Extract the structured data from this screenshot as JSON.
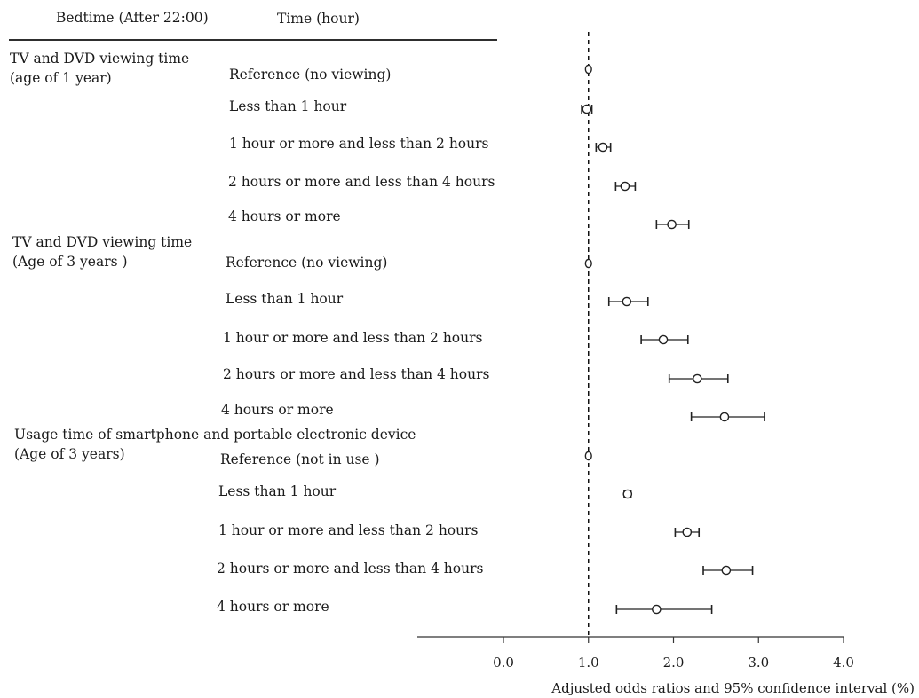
{
  "header": {
    "col1": "Bedtime (After 22:00)",
    "col2": "Time (hour)"
  },
  "chart_data": {
    "type": "forest",
    "xlabel": "Adjusted odds ratios and 95% confidence interval (%)",
    "x_ticks": [
      "0.0",
      "1.0",
      "2.0",
      "3.0",
      "4.0"
    ],
    "xlim": [
      -1.05,
      4.0
    ],
    "reference_line": 1.0,
    "groups": [
      {
        "title": [
          "TV and DVD viewing time",
          "(age of 1 year)"
        ],
        "rows": [
          {
            "label": "Reference (no viewing)",
            "or": 1.0,
            "lo": 1.0,
            "hi": 1.0
          },
          {
            "label": "Less than 1 hour",
            "or": 0.98,
            "lo": 0.92,
            "hi": 1.04
          },
          {
            "label": "1 hour or more and less than 2 hours",
            "or": 1.17,
            "lo": 1.09,
            "hi": 1.26
          },
          {
            "label": "2 hours or more and less than 4 hours",
            "or": 1.43,
            "lo": 1.32,
            "hi": 1.55
          },
          {
            "label": "4 hours or more",
            "or": 1.98,
            "lo": 1.8,
            "hi": 2.18
          }
        ]
      },
      {
        "title": [
          "TV and DVD viewing time",
          "(Age of 3 years )"
        ],
        "rows": [
          {
            "label": "Reference (no viewing)",
            "or": 1.0,
            "lo": 1.0,
            "hi": 1.0
          },
          {
            "label": "Less than 1 hour",
            "or": 1.45,
            "lo": 1.24,
            "hi": 1.7
          },
          {
            "label": "1 hour or more and less than 2 hours",
            "or": 1.88,
            "lo": 1.62,
            "hi": 2.17
          },
          {
            "label": "2 hours or more and less than 4 hours",
            "or": 2.28,
            "lo": 1.95,
            "hi": 2.64
          },
          {
            "label": "4 hours or more",
            "or": 2.6,
            "lo": 2.21,
            "hi": 3.07
          }
        ]
      },
      {
        "title": [
          "Usage time of smartphone and portable electronic device",
          "(Age of 3 years)"
        ],
        "rows": [
          {
            "label": "Reference (not in use )",
            "or": 1.0,
            "lo": 1.0,
            "hi": 1.0
          },
          {
            "label": "Less than 1 hour",
            "or": 1.46,
            "lo": 1.42,
            "hi": 1.5
          },
          {
            "label": "1 hour or more and less than 2 hours",
            "or": 2.16,
            "lo": 2.02,
            "hi": 2.3
          },
          {
            "label": "2 hours or more and less than 4 hours",
            "or": 2.62,
            "lo": 2.35,
            "hi": 2.93
          },
          {
            "label": "4 hours or more",
            "or": 1.8,
            "lo": 1.33,
            "hi": 2.45
          }
        ]
      }
    ]
  }
}
